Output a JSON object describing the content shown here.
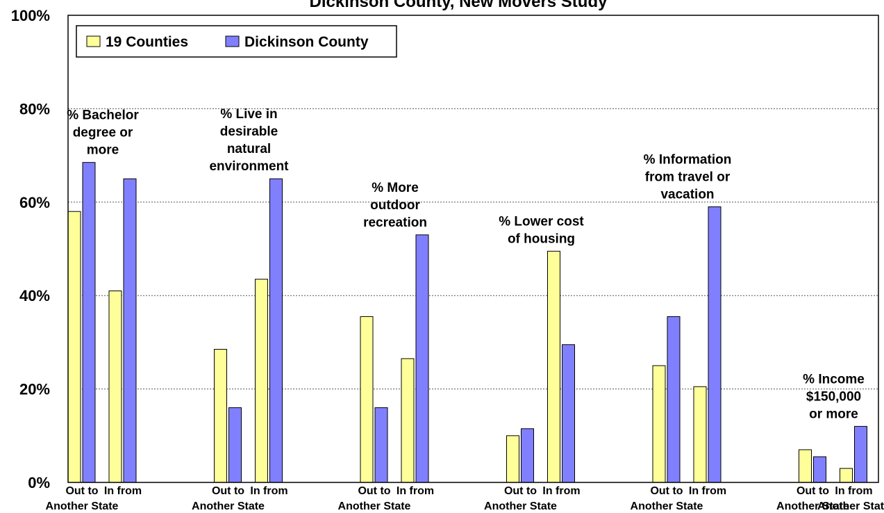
{
  "chart_data": {
    "type": "bar",
    "title": "Dickinson County, New Movers Study",
    "ylim": [
      0,
      100
    ],
    "yticks": [
      "0%",
      "20%",
      "40%",
      "60%",
      "80%",
      "100%"
    ],
    "ytick_values": [
      0,
      20,
      40,
      60,
      80,
      100
    ],
    "grid": true,
    "legend_placement": "top-left",
    "series": [
      {
        "name": "19 Counties",
        "color": "#FFFF99"
      },
      {
        "name": "Dickinson County",
        "color": "#8080FF"
      }
    ],
    "groups": [
      {
        "label_lines": [
          "% Bachelor",
          "degree or",
          "more"
        ],
        "subgroups": [
          {
            "label_lines": [
              "Out to",
              "Another State"
            ],
            "values": [
              58,
              68.5
            ]
          },
          {
            "label_lines": [
              "In from",
              ""
            ],
            "values": [
              41,
              65
            ]
          }
        ]
      },
      {
        "label_lines": [
          "% Live in",
          "desirable",
          "natural",
          "environment"
        ],
        "subgroups": [
          {
            "label_lines": [
              "Out to",
              "Another State"
            ],
            "values": [
              28.5,
              16
            ]
          },
          {
            "label_lines": [
              "In from",
              ""
            ],
            "values": [
              43.5,
              65
            ]
          }
        ]
      },
      {
        "label_lines": [
          "% More",
          "outdoor",
          "recreation"
        ],
        "subgroups": [
          {
            "label_lines": [
              "Out to",
              "Another State"
            ],
            "values": [
              35.5,
              16
            ]
          },
          {
            "label_lines": [
              "In from",
              ""
            ],
            "values": [
              26.5,
              53
            ]
          }
        ]
      },
      {
        "label_lines": [
          "% Lower cost",
          "of housing"
        ],
        "subgroups": [
          {
            "label_lines": [
              "Out to",
              "Another State"
            ],
            "values": [
              10,
              11.5
            ]
          },
          {
            "label_lines": [
              "In from",
              ""
            ],
            "values": [
              49.5,
              29.5
            ]
          }
        ]
      },
      {
        "label_lines": [
          "% Information",
          "from travel or",
          "vacation"
        ],
        "subgroups": [
          {
            "label_lines": [
              "Out to",
              "Another State"
            ],
            "values": [
              25,
              35.5
            ]
          },
          {
            "label_lines": [
              "In from",
              ""
            ],
            "values": [
              20.5,
              59
            ]
          }
        ]
      },
      {
        "label_lines": [
          "% Income",
          "$150,000",
          "or more"
        ],
        "subgroups": [
          {
            "label_lines": [
              "Out to",
              "Another State"
            ],
            "values": [
              7,
              5.5
            ]
          },
          {
            "label_lines": [
              "In from",
              "Another State"
            ],
            "values": [
              3,
              12
            ]
          }
        ]
      }
    ]
  }
}
